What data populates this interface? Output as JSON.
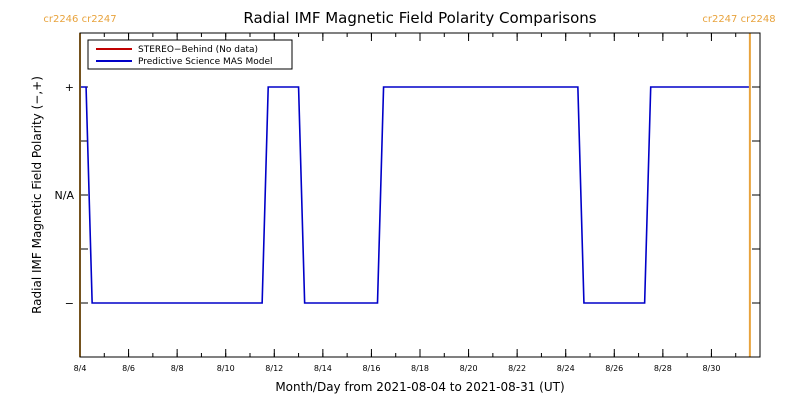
{
  "chart_data": {
    "type": "line",
    "title": "Radial IMF Magnetic Field Polarity Comparisons",
    "xlabel": "Month/Day from 2021-08-04 to 2021-08-31 (UT)",
    "ylabel": "Radial IMF Magnetic Field Polarity (−,+)",
    "xlim": [
      "2021-08-04",
      "2021-09-01"
    ],
    "ylim": [
      -1.5,
      1.5
    ],
    "grid": false,
    "legend": {
      "position": "top-left"
    },
    "x_ticks": [
      "8/4",
      "8/6",
      "8/8",
      "8/10",
      "8/12",
      "8/14",
      "8/16",
      "8/18",
      "8/20",
      "8/22",
      "8/24",
      "8/26",
      "8/28",
      "8/30"
    ],
    "y_ticks": [
      {
        "value": 1,
        "label": "+"
      },
      {
        "value": 0,
        "label": "N/A"
      },
      {
        "value": -1,
        "label": "−"
      }
    ],
    "carrington_markers": [
      {
        "date": "2021-08-04",
        "label": "cr2246 cr2247",
        "color": "#e8a33d"
      },
      {
        "date": "2021-08-31 14:00",
        "label": "cr2247 cr2248",
        "color": "#e8a33d"
      }
    ],
    "series": [
      {
        "name": "STEREO−Behind (No data)",
        "color": "#c00000",
        "points": []
      },
      {
        "name": "Predictive Science MAS Model",
        "color": "#0000c8",
        "points": [
          [
            "2021-08-04 00:00",
            1
          ],
          [
            "2021-08-04 06:00",
            1
          ],
          [
            "2021-08-04 12:00",
            -1
          ],
          [
            "2021-08-11 12:00",
            -1
          ],
          [
            "2021-08-11 18:00",
            1
          ],
          [
            "2021-08-13 00:00",
            1
          ],
          [
            "2021-08-13 06:00",
            -1
          ],
          [
            "2021-08-16 06:00",
            -1
          ],
          [
            "2021-08-16 12:00",
            1
          ],
          [
            "2021-08-24 12:00",
            1
          ],
          [
            "2021-08-24 18:00",
            -1
          ],
          [
            "2021-08-27 06:00",
            -1
          ],
          [
            "2021-08-27 12:00",
            1
          ],
          [
            "2021-08-31 14:00",
            1
          ]
        ]
      }
    ]
  }
}
